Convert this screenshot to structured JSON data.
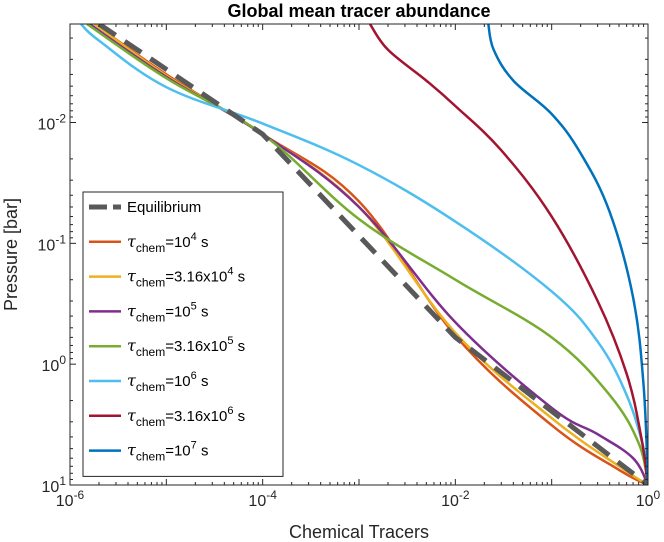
{
  "chart_data": {
    "type": "line",
    "title": "Global mean tracer abundance",
    "xlabel": "Chemical Tracers",
    "ylabel": "Pressure [bar]",
    "xscale": "log",
    "yscale": "log",
    "xlim": [
      1e-06,
      1
    ],
    "ylim": [
      0.00153,
      10
    ],
    "y_reversed": true,
    "grid": false,
    "legend_position": "bottom-left",
    "xticks": [
      {
        "value": 1e-06,
        "base": "10",
        "exp": "-6"
      },
      {
        "value": 0.0001,
        "base": "10",
        "exp": "-4"
      },
      {
        "value": 0.01,
        "base": "10",
        "exp": "-2"
      },
      {
        "value": 1,
        "base": "10",
        "exp": "0"
      }
    ],
    "yticks": [
      {
        "value": 0.01,
        "base": "10",
        "exp": "-2"
      },
      {
        "value": 0.1,
        "base": "10",
        "exp": "-1"
      },
      {
        "value": 1,
        "base": "10",
        "exp": "0"
      },
      {
        "value": 10,
        "base": "10",
        "exp": "1"
      }
    ],
    "series": [
      {
        "name": "Equilibrium",
        "label_parts": [
          "Equilibrium"
        ],
        "color": "#595959",
        "dash": true,
        "x": [
          2e-06,
          0.0001,
          0.01,
          1
        ],
        "y": [
          0.00153,
          0.0125,
          0.6,
          10
        ]
      },
      {
        "name": "tau_chem=10^4 s",
        "label_parts": [
          "τ",
          "chem",
          "=10",
          "4",
          " s"
        ],
        "color": "#d95319",
        "dash": false,
        "x": [
          1.8e-06,
          1e-05,
          0.0001,
          0.001,
          0.01,
          0.1,
          0.5,
          1
        ],
        "y": [
          0.00153,
          0.004,
          0.0125,
          0.045,
          0.58,
          3.2,
          7.5,
          10
        ]
      },
      {
        "name": "tau_chem=3.16x10^4 s",
        "label_parts": [
          "τ",
          "chem",
          "=3.16x10",
          "4",
          " s"
        ],
        "color": "#edb120",
        "dash": false,
        "x": [
          1.8e-06,
          1e-05,
          0.0001,
          0.001,
          0.01,
          0.1,
          0.5,
          1
        ],
        "y": [
          0.00153,
          0.0041,
          0.0125,
          0.05,
          0.55,
          2.8,
          7,
          10
        ]
      },
      {
        "name": "tau_chem=10^5 s",
        "label_parts": [
          "τ",
          "chem",
          "=10",
          "5",
          " s"
        ],
        "color": "#7e2f8e",
        "dash": false,
        "x": [
          1.6e-06,
          1e-05,
          0.0001,
          0.001,
          0.01,
          0.1,
          0.3,
          0.7,
          1
        ],
        "y": [
          0.00153,
          0.0042,
          0.0125,
          0.05,
          0.45,
          2.3,
          3.8,
          6,
          10
        ]
      },
      {
        "name": "tau_chem=3.16x10^5 s",
        "label_parts": [
          "τ",
          "chem",
          "=3.16x10",
          "5",
          " s"
        ],
        "color": "#77ac30",
        "dash": false,
        "x": [
          1.5e-06,
          1e-05,
          0.0001,
          0.001,
          0.01,
          0.1,
          0.4,
          0.8,
          1
        ],
        "y": [
          0.00153,
          0.0043,
          0.0125,
          0.063,
          0.2,
          0.6,
          1.8,
          4.5,
          10
        ]
      },
      {
        "name": "tau_chem=10^6 s",
        "label_parts": [
          "τ",
          "chem",
          "=10",
          "6",
          " s"
        ],
        "color": "#4dbeee",
        "dash": false,
        "x": [
          1.3e-06,
          2e-06,
          1e-05,
          0.0001,
          0.001,
          0.01,
          0.1,
          0.3,
          0.6,
          0.9,
          1
        ],
        "y": [
          0.00153,
          0.0021,
          0.0051,
          0.0102,
          0.0225,
          0.066,
          0.25,
          0.65,
          1.8,
          5,
          10
        ]
      },
      {
        "name": "tau_chem=3.16x10^6 s",
        "label_parts": [
          "τ",
          "chem",
          "=3.16x10",
          "6",
          " s"
        ],
        "color": "#a2142f",
        "dash": false,
        "x": [
          0.0013,
          0.002,
          0.005,
          0.01,
          0.03,
          0.1,
          0.3,
          0.6,
          0.85,
          1
        ],
        "y": [
          0.00153,
          0.0025,
          0.0045,
          0.0073,
          0.017,
          0.06,
          0.3,
          1.2,
          4,
          10
        ]
      },
      {
        "name": "tau_chem=10^7 s",
        "label_parts": [
          "τ",
          "chem",
          "=10",
          "7",
          " s"
        ],
        "color": "#0072bd",
        "dash": false,
        "x": [
          0.022,
          0.025,
          0.04,
          0.1,
          0.2,
          0.4,
          0.7,
          0.9,
          1
        ],
        "y": [
          0.00153,
          0.0025,
          0.0045,
          0.0085,
          0.018,
          0.055,
          0.28,
          1.5,
          10
        ]
      }
    ]
  }
}
